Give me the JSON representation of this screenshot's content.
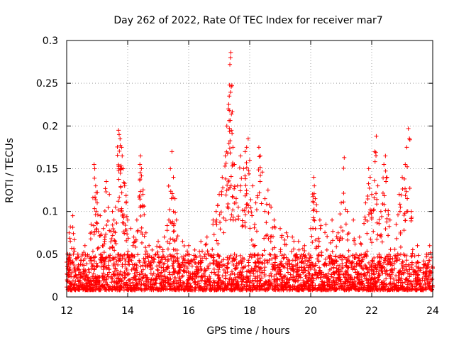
{
  "chart_data": {
    "type": "scatter",
    "title": "Day 262 of 2022, Rate Of TEC Index for receiver mar7",
    "xlabel": "GPS time / hours",
    "ylabel": "ROTI / TECUs",
    "xlim": [
      12,
      24
    ],
    "ylim": [
      0,
      0.3
    ],
    "x_ticks": [
      12,
      14,
      16,
      18,
      20,
      22,
      24
    ],
    "x_tick_labels": [
      "12",
      "14",
      "16",
      "18",
      "20",
      "22",
      "24"
    ],
    "y_ticks": [
      0,
      0.05,
      0.1,
      0.15,
      0.2,
      0.25,
      0.3
    ],
    "y_tick_labels": [
      "0",
      "0.05",
      "0.1",
      "0.15",
      "0.2",
      "0.25",
      "0.3"
    ],
    "grid": true,
    "marker": "+",
    "series_color": "#ff0000",
    "series": [
      {
        "name": "ROTI",
        "points": [
          [
            12.05,
            0.045
          ],
          [
            12.08,
            0.075
          ],
          [
            12.12,
            0.082
          ],
          [
            12.2,
            0.095
          ],
          [
            12.6,
            0.06
          ],
          [
            12.8,
            0.085
          ],
          [
            12.9,
            0.155
          ],
          [
            12.92,
            0.15
          ],
          [
            12.95,
            0.13
          ],
          [
            13.0,
            0.11
          ],
          [
            13.1,
            0.095
          ],
          [
            13.2,
            0.08
          ],
          [
            13.25,
            0.07
          ],
          [
            13.3,
            0.135
          ],
          [
            13.4,
            0.12
          ],
          [
            13.5,
            0.1
          ],
          [
            13.55,
            0.09
          ],
          [
            13.6,
            0.105
          ],
          [
            13.7,
            0.195
          ],
          [
            13.72,
            0.19
          ],
          [
            13.75,
            0.185
          ],
          [
            13.8,
            0.175
          ],
          [
            13.82,
            0.165
          ],
          [
            13.85,
            0.15
          ],
          [
            13.9,
            0.13
          ],
          [
            13.95,
            0.11
          ],
          [
            14.0,
            0.09
          ],
          [
            14.1,
            0.08
          ],
          [
            14.2,
            0.07
          ],
          [
            14.3,
            0.09
          ],
          [
            14.4,
            0.155
          ],
          [
            14.42,
            0.165
          ],
          [
            14.45,
            0.15
          ],
          [
            14.5,
            0.12
          ],
          [
            14.6,
            0.075
          ],
          [
            14.7,
            0.06
          ],
          [
            14.8,
            0.055
          ],
          [
            15.0,
            0.065
          ],
          [
            15.2,
            0.07
          ],
          [
            15.35,
            0.09
          ],
          [
            15.4,
            0.15
          ],
          [
            15.45,
            0.17
          ],
          [
            15.5,
            0.14
          ],
          [
            15.55,
            0.115
          ],
          [
            15.6,
            0.09
          ],
          [
            15.8,
            0.065
          ],
          [
            16.0,
            0.06
          ],
          [
            16.2,
            0.055
          ],
          [
            16.4,
            0.065
          ],
          [
            16.6,
            0.07
          ],
          [
            16.8,
            0.09
          ],
          [
            16.9,
            0.1
          ],
          [
            17.0,
            0.12
          ],
          [
            17.1,
            0.14
          ],
          [
            17.2,
            0.165
          ],
          [
            17.25,
            0.2
          ],
          [
            17.3,
            0.22
          ],
          [
            17.33,
            0.235
          ],
          [
            17.35,
            0.272
          ],
          [
            17.37,
            0.28
          ],
          [
            17.38,
            0.286
          ],
          [
            17.4,
            0.195
          ],
          [
            17.45,
            0.175
          ],
          [
            17.5,
            0.155
          ],
          [
            17.6,
            0.13
          ],
          [
            17.7,
            0.165
          ],
          [
            17.8,
            0.15
          ],
          [
            17.85,
            0.17
          ],
          [
            17.9,
            0.175
          ],
          [
            17.95,
            0.185
          ],
          [
            18.0,
            0.16
          ],
          [
            18.1,
            0.13
          ],
          [
            18.2,
            0.11
          ],
          [
            18.3,
            0.175
          ],
          [
            18.35,
            0.165
          ],
          [
            18.5,
            0.115
          ],
          [
            18.6,
            0.125
          ],
          [
            18.7,
            0.105
          ],
          [
            18.8,
            0.09
          ],
          [
            19.0,
            0.08
          ],
          [
            19.2,
            0.075
          ],
          [
            19.4,
            0.07
          ],
          [
            19.6,
            0.065
          ],
          [
            19.8,
            0.06
          ],
          [
            20.0,
            0.08
          ],
          [
            20.1,
            0.14
          ],
          [
            20.12,
            0.13
          ],
          [
            20.15,
            0.115
          ],
          [
            20.2,
            0.1
          ],
          [
            20.3,
            0.09
          ],
          [
            20.5,
            0.085
          ],
          [
            20.7,
            0.09
          ],
          [
            20.9,
            0.075
          ],
          [
            21.0,
            0.11
          ],
          [
            21.1,
            0.163
          ],
          [
            21.2,
            0.1
          ],
          [
            21.4,
            0.09
          ],
          [
            21.6,
            0.07
          ],
          [
            21.8,
            0.11
          ],
          [
            21.9,
            0.15
          ],
          [
            21.95,
            0.14
          ],
          [
            22.0,
            0.12
          ],
          [
            22.1,
            0.17
          ],
          [
            22.15,
            0.188
          ],
          [
            22.2,
            0.13
          ],
          [
            22.3,
            0.1
          ],
          [
            22.4,
            0.155
          ],
          [
            22.45,
            0.165
          ],
          [
            22.5,
            0.14
          ],
          [
            22.6,
            0.09
          ],
          [
            22.8,
            0.085
          ],
          [
            22.9,
            0.12
          ],
          [
            23.0,
            0.14
          ],
          [
            23.1,
            0.155
          ],
          [
            23.15,
            0.175
          ],
          [
            23.2,
            0.197
          ],
          [
            23.3,
            0.1
          ],
          [
            23.5,
            0.06
          ],
          [
            23.8,
            0.05
          ],
          [
            23.9,
            0.06
          ]
        ],
        "baseline_band": [
          0.008,
          0.05
        ]
      }
    ]
  }
}
